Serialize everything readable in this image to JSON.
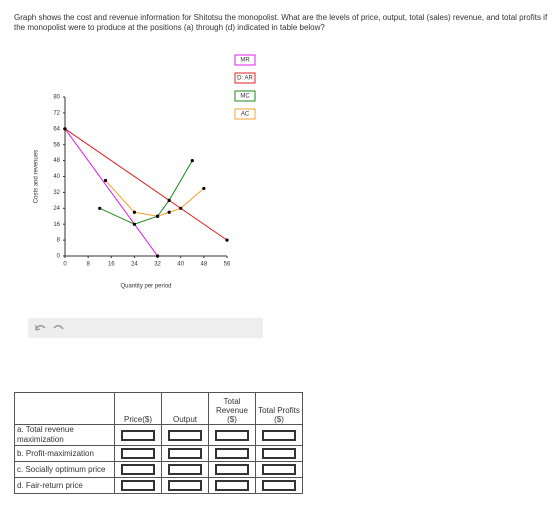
{
  "question": "Graph shows the cost and revenue information for Shitotsu the monopolist. What are the levels of price, output, total (sales) revenue, and total profits if the monopolist were to produce at the positions (a) through (d) indicated in table below?",
  "chart_data": {
    "type": "line",
    "x_label": "Quantity per period",
    "y_label": "Costs and revenues",
    "xlim": [
      0,
      56
    ],
    "ylim": [
      0,
      80
    ],
    "xticks": [
      0,
      8,
      16,
      24,
      32,
      40,
      48,
      56
    ],
    "yticks": [
      0,
      8,
      16,
      24,
      32,
      40,
      48,
      56,
      64,
      72,
      80
    ],
    "markers": true,
    "series": [
      {
        "name": "MR",
        "color": "#e020e0",
        "x": [
          0,
          32
        ],
        "values": [
          64,
          0
        ]
      },
      {
        "name": "D: AR",
        "color": "#e02020",
        "x": [
          0,
          56
        ],
        "values": [
          64,
          8
        ]
      },
      {
        "name": "MC",
        "color": "#1a8a1a",
        "x": [
          12,
          24,
          32,
          36,
          44
        ],
        "values": [
          24,
          16,
          20,
          28,
          48
        ]
      },
      {
        "name": "AC",
        "color": "#f0a030",
        "x": [
          14,
          24,
          32,
          36,
          40,
          48
        ],
        "values": [
          38,
          22,
          20,
          22,
          24,
          34
        ]
      }
    ]
  },
  "table": {
    "headers": [
      "Price($)",
      "Output",
      "Total Revenue ($)",
      "Total Profits ($)"
    ],
    "rows": [
      "a. Total revenue maximization",
      "b. Profit-maximization",
      "c. Socially optimum price",
      "d. Fair-return price"
    ]
  }
}
